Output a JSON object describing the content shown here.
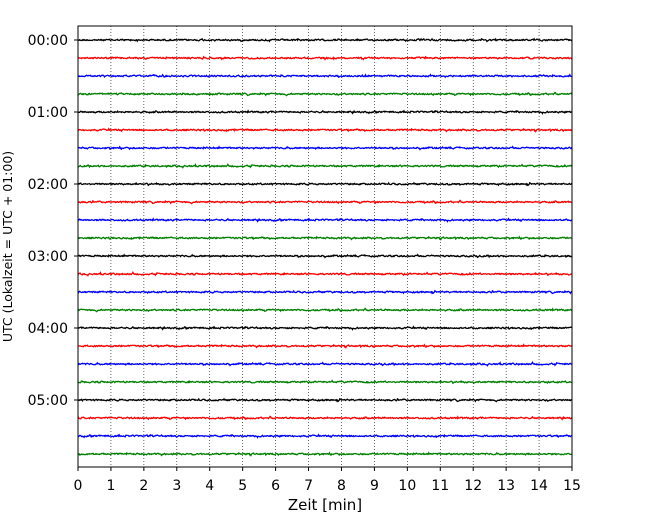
{
  "chart_data": {
    "type": "line",
    "title": "",
    "xlabel": "Zeit  [min]",
    "ylabel": "UTC (Lokalzeit = UTC + 01:00)",
    "xlim": [
      0,
      15
    ],
    "x_ticks": [
      "0",
      "1",
      "2",
      "3",
      "4",
      "5",
      "6",
      "7",
      "8",
      "9",
      "10",
      "11",
      "12",
      "13",
      "14",
      "15"
    ],
    "y_ticks": [
      "00:00",
      "01:00",
      "02:00",
      "03:00",
      "04:00",
      "05:00"
    ],
    "grid": "vertical dotted",
    "trace_minutes": 15,
    "trace_start_times": [
      "00:00",
      "00:15",
      "00:30",
      "00:45",
      "01:00",
      "01:15",
      "01:30",
      "01:45",
      "02:00",
      "02:15",
      "02:30",
      "02:45",
      "03:00",
      "03:15",
      "03:30",
      "03:45",
      "04:00",
      "04:15",
      "04:30",
      "04:45",
      "05:00",
      "05:15",
      "05:30",
      "05:45"
    ],
    "trace_colors": [
      "#000000",
      "#ff0000",
      "#0000ff",
      "#008000"
    ]
  }
}
